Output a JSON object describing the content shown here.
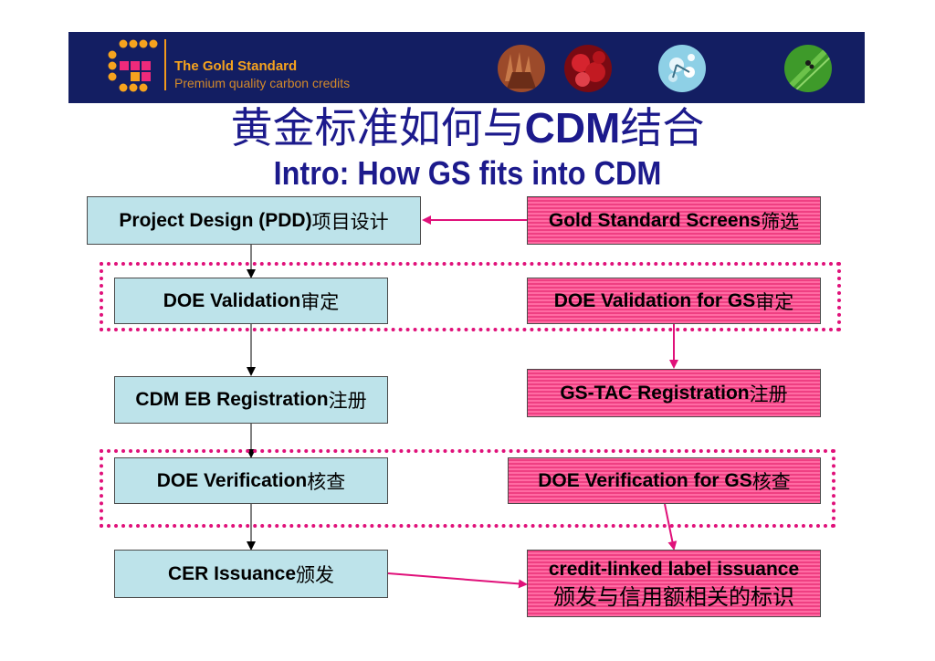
{
  "banner": {
    "brand_name": "The Gold Standard",
    "tagline": "Premium quality carbon credits",
    "accent_color": "#f6a31e",
    "background_color": "#131e62",
    "photos": [
      "hands-photo",
      "red-cells-photo",
      "water-molecule-photo",
      "green-leaf-photo"
    ]
  },
  "title": {
    "chinese_prefix": "黄金标准如何与",
    "chinese_bold": "CDM",
    "chinese_suffix": "结合",
    "english": "Intro: How GS fits into CDM"
  },
  "cdm_steps": [
    {
      "en": "Project Design (PDD)",
      "zh": " 项目设计"
    },
    {
      "en": "DOE Validation",
      "zh": " 审定"
    },
    {
      "en": "CDM EB Registration",
      "zh": " 注册"
    },
    {
      "en": "DOE Verification",
      "zh": " 核查"
    },
    {
      "en": "CER Issuance",
      "zh": " 颁发"
    }
  ],
  "gs_steps": [
    {
      "en": "Gold Standard Screens",
      "zh": " 筛选"
    },
    {
      "en": "DOE Validation for GS",
      "zh": "审定"
    },
    {
      "en": "GS-TAC Registration",
      "zh": " 注册"
    },
    {
      "en": "DOE Verification for GS",
      "zh": " 核查"
    },
    {
      "en": "credit-linked label issuance",
      "zh": "颁发与信用额相关的标识"
    }
  ],
  "colors": {
    "cdm_box": "#bde3ea",
    "gs_box": "#ef3f82",
    "connector": "#e0117a",
    "title": "#1c1a8c"
  }
}
